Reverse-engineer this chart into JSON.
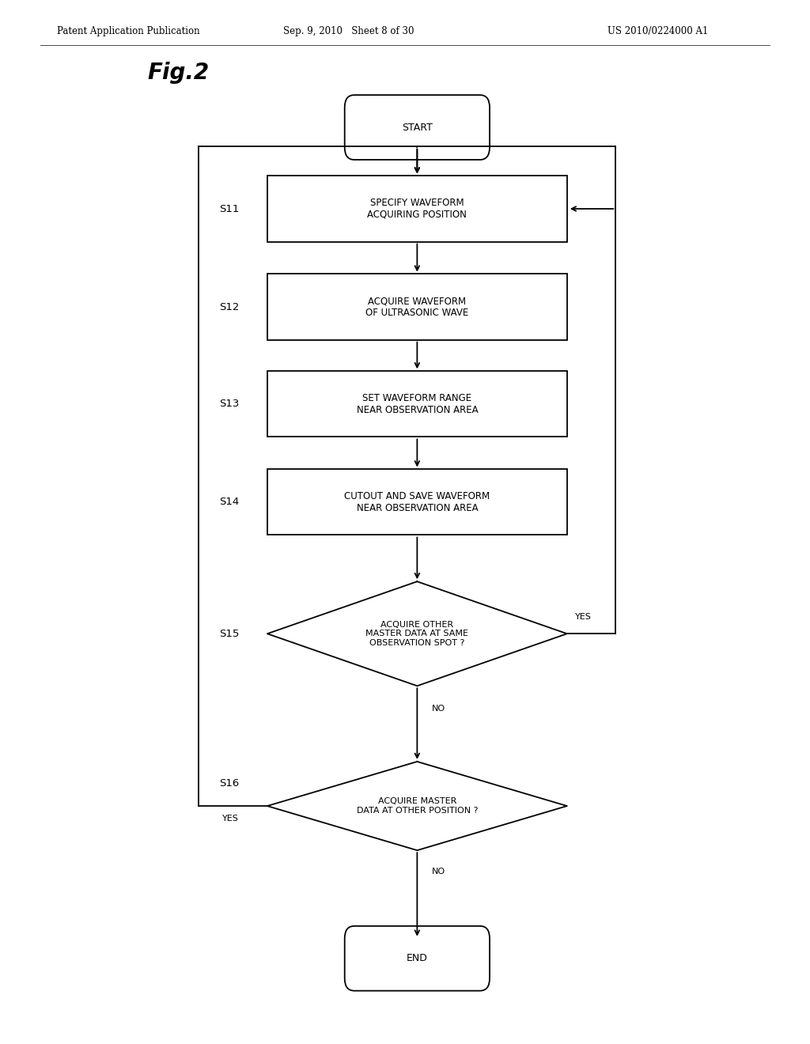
{
  "bg_color": "#ffffff",
  "header_left": "Patent Application Publication",
  "header_mid": "Sep. 9, 2010   Sheet 8 of 30",
  "header_right": "US 2010/0224000 A1",
  "fig_label": "Fig.2",
  "label_fontsize": 8.5,
  "step_fontsize": 9.5,
  "header_fontsize": 8.5,
  "figlabel_fontsize": 20
}
